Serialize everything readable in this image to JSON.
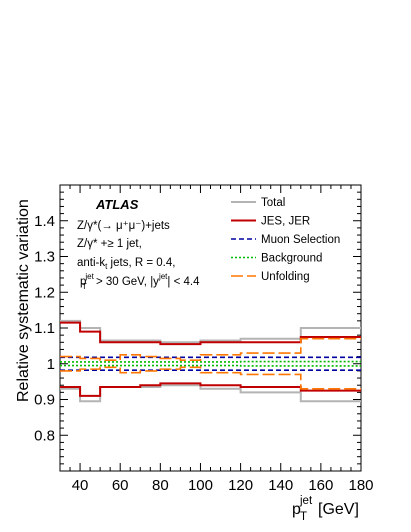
{
  "chart_data": {
    "type": "line",
    "x_bin_edges": [
      30,
      40,
      50,
      60,
      70,
      80,
      90,
      100,
      120,
      150,
      180
    ],
    "xlim": [
      30,
      180
    ],
    "ylim": [
      0.7,
      1.5
    ],
    "x_ticks": [
      "40",
      "60",
      "80",
      "100",
      "120",
      "140",
      "160",
      "180"
    ],
    "y_ticks": [
      "0.8",
      "0.9",
      "1",
      "1.1",
      "1.2",
      "1.3",
      "1.4"
    ],
    "xlabel_main": "p",
    "xlabel_sub": "T",
    "xlabel_sup": "jet",
    "xlabel_unit": "[GeV]",
    "ylabel": "Relative systematic variation",
    "series": [
      {
        "name": "Total",
        "color": "#b4b4b4",
        "style": "solid",
        "upper": [
          1.12,
          1.1,
          1.065,
          1.065,
          1.065,
          1.06,
          1.06,
          1.065,
          1.07,
          1.1
        ],
        "lower": [
          0.93,
          0.895,
          0.935,
          0.935,
          0.935,
          0.94,
          0.94,
          0.93,
          0.92,
          0.895
        ]
      },
      {
        "name": "JES, JER",
        "color": "#c00000",
        "style": "solid",
        "upper": [
          1.115,
          1.09,
          1.06,
          1.06,
          1.06,
          1.055,
          1.055,
          1.06,
          1.06,
          1.075
        ],
        "lower": [
          0.935,
          0.91,
          0.935,
          0.935,
          0.94,
          0.945,
          0.945,
          0.94,
          0.935,
          0.925
        ]
      },
      {
        "name": "Muon Selection",
        "color": "#0000a0",
        "style": "dashed",
        "upper": [
          1.018,
          1.018,
          1.018,
          1.018,
          1.018,
          1.018,
          1.018,
          1.018,
          1.018,
          1.018
        ],
        "lower": [
          0.982,
          0.982,
          0.982,
          0.982,
          0.982,
          0.982,
          0.982,
          0.982,
          0.982,
          0.982
        ]
      },
      {
        "name": "Background",
        "color": "#00bb00",
        "style": "dotted",
        "upper": [
          1.005,
          1.005,
          1.005,
          1.005,
          1.005,
          1.005,
          1.005,
          1.005,
          1.006,
          1.006
        ],
        "lower": [
          0.995,
          0.995,
          0.995,
          0.995,
          0.995,
          0.995,
          0.995,
          0.995,
          0.994,
          0.994
        ]
      },
      {
        "name": "Unfolding",
        "color": "#ff7700",
        "style": "longdash",
        "upper": [
          1.02,
          1.015,
          1.01,
          1.025,
          1.02,
          1.015,
          1.01,
          1.025,
          1.03,
          1.07
        ],
        "lower": [
          0.98,
          0.985,
          0.99,
          0.975,
          0.98,
          0.985,
          0.99,
          0.975,
          0.97,
          0.93
        ]
      }
    ],
    "legend_placement": "top-right",
    "annotations": {
      "experiment": "ATLAS",
      "line1": "Z/γ*(→ μ⁺μ⁻)+jets",
      "line2": "Z/γ* +≥ 1 jet,",
      "line3": "anti-k",
      "line3_sub": "t",
      "line3_rest": " jets,  R = 0.4,",
      "line4_p": "p",
      "line4_sub": "T",
      "line4_sup": "jet",
      "line4_mid": " > 30 GeV, |y",
      "line4_sup2": "jet",
      "line4_end": "| < 4.4"
    }
  }
}
